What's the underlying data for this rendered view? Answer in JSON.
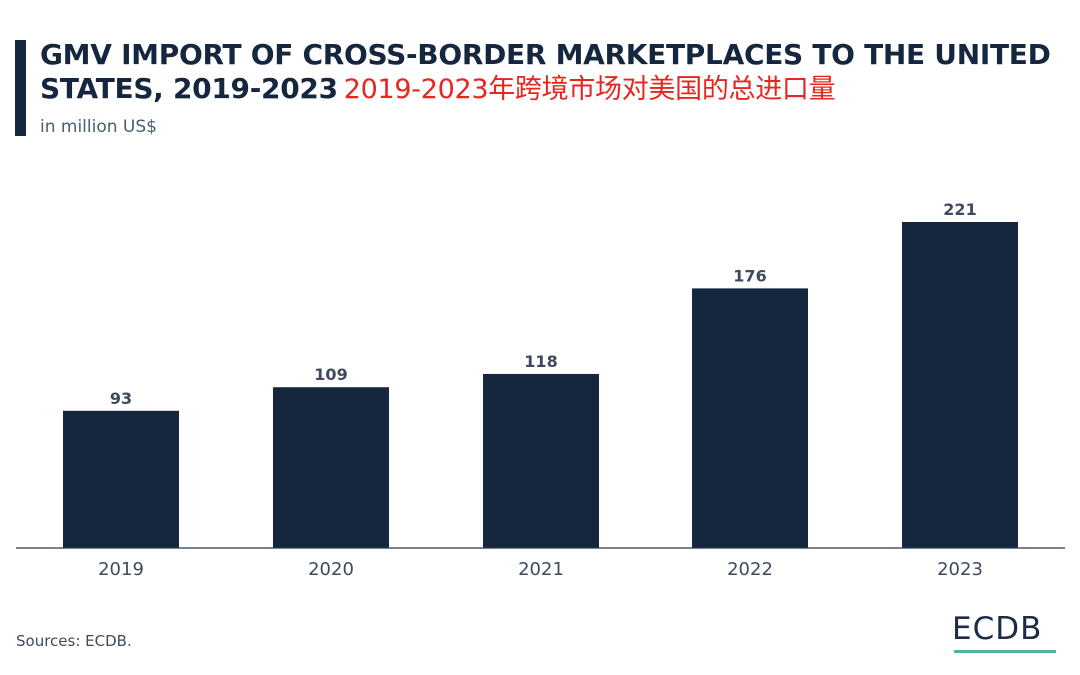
{
  "header": {
    "title": "GMV IMPORT OF CROSS-BORDER MARKETPLACES TO THE UNITED STATES, 2019-2023",
    "title_cn": "2019-2023年跨境市场对美国的总进口量",
    "subtitle": "in million US$"
  },
  "footer": {
    "source": "Sources: ECDB.",
    "logo": "ECDB"
  },
  "colors": {
    "bar": "#15273f",
    "accent": "#15273f",
    "chinese_title": "#e8251f",
    "logo_underline": "#4fb59c"
  },
  "chart_data": {
    "type": "bar",
    "title": "GMV IMPORT OF CROSS-BORDER MARKETPLACES TO THE UNITED STATES, 2019-2023",
    "subtitle": "in million US$",
    "xlabel": "",
    "ylabel": "",
    "categories": [
      "2019",
      "2020",
      "2021",
      "2022",
      "2023"
    ],
    "values": [
      93,
      109,
      118,
      176,
      221
    ],
    "ylim": [
      0,
      221
    ],
    "grid": false,
    "legend": "none",
    "data_labels": true
  }
}
